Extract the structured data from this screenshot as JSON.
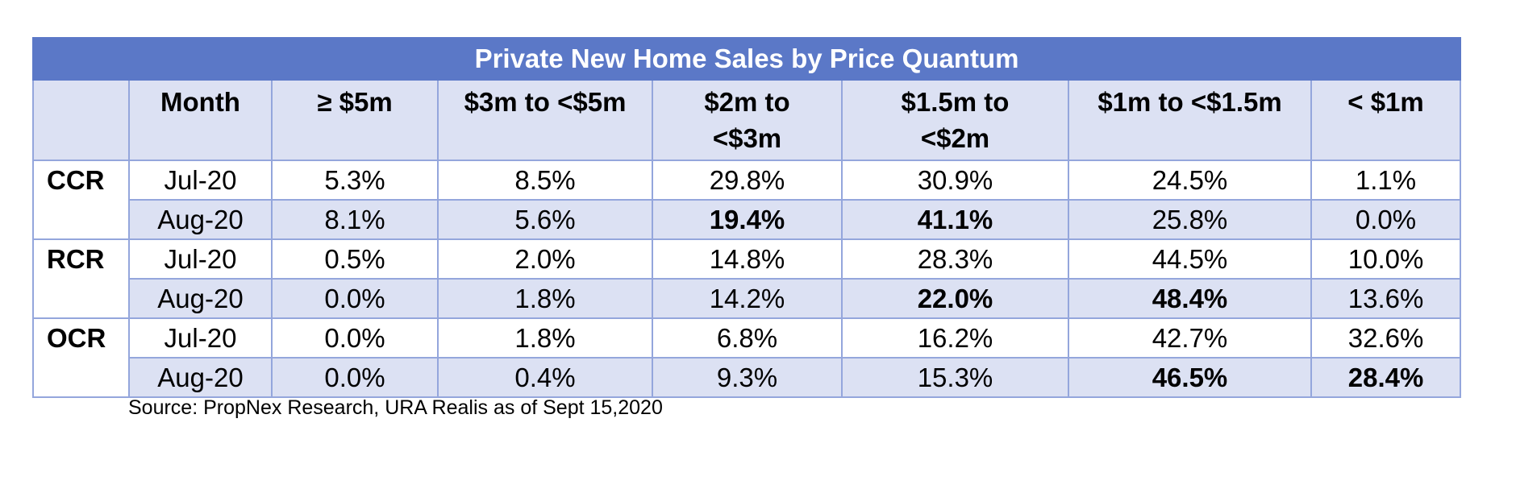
{
  "chart_data": {
    "type": "table",
    "title": "Private New Home Sales by Price Quantum",
    "columns": [
      "",
      "Month",
      "≥ $5m",
      "$3m to <$5m",
      "$2m to <$3m",
      "$1.5m to <$2m",
      "$1m to <$1.5m",
      "< $1m"
    ],
    "column_lines": [
      [
        ""
      ],
      [
        "Month"
      ],
      [
        "≥ $5m"
      ],
      [
        "$3m to <$5m"
      ],
      [
        "$2m to",
        "<$3m"
      ],
      [
        "$1.5m to",
        "<$2m"
      ],
      [
        "$1m to <$1.5m"
      ],
      [
        "< $1m"
      ]
    ],
    "rows": [
      {
        "region": "CCR",
        "month": "Jul-20",
        "values": [
          "5.3%",
          "8.5%",
          "29.8%",
          "30.9%",
          "24.5%",
          "1.1%"
        ],
        "bold": [
          false,
          false,
          false,
          false,
          false,
          false
        ]
      },
      {
        "region": "",
        "month": "Aug-20",
        "values": [
          "8.1%",
          "5.6%",
          "19.4%",
          "41.1%",
          "25.8%",
          "0.0%"
        ],
        "bold": [
          false,
          false,
          true,
          true,
          false,
          false
        ]
      },
      {
        "region": "RCR",
        "month": "Jul-20",
        "values": [
          "0.5%",
          "2.0%",
          "14.8%",
          "28.3%",
          "44.5%",
          "10.0%"
        ],
        "bold": [
          false,
          false,
          false,
          false,
          false,
          false
        ]
      },
      {
        "region": "",
        "month": "Aug-20",
        "values": [
          "0.0%",
          "1.8%",
          "14.2%",
          "22.0%",
          "48.4%",
          "13.6%"
        ],
        "bold": [
          false,
          false,
          false,
          true,
          true,
          false
        ]
      },
      {
        "region": "OCR",
        "month": "Jul-20",
        "values": [
          "0.0%",
          "1.8%",
          "6.8%",
          "16.2%",
          "42.7%",
          "32.6%"
        ],
        "bold": [
          false,
          false,
          false,
          false,
          false,
          false
        ]
      },
      {
        "region": "",
        "month": "Aug-20",
        "values": [
          "0.0%",
          "0.4%",
          "9.3%",
          "15.3%",
          "46.5%",
          "28.4%"
        ],
        "bold": [
          false,
          false,
          false,
          false,
          true,
          true
        ]
      }
    ],
    "source": "Source: PropNex Research, URA Realis as of Sept 15,2020"
  },
  "colors": {
    "title_bg": "#5b78c7",
    "alt_row_bg": "#dce1f3",
    "border": "#94a6dc"
  }
}
